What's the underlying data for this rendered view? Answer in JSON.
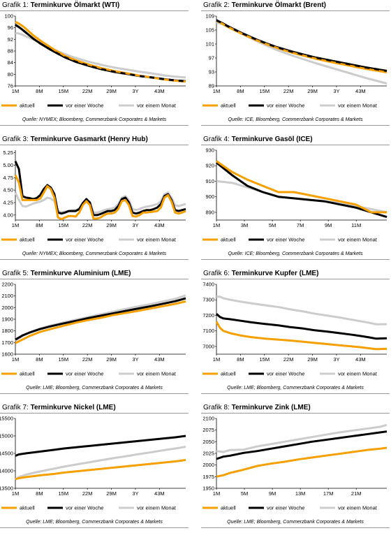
{
  "legend": {
    "aktuell": "aktuell",
    "week": "vor einer Woche",
    "month": "vor einem Monat"
  },
  "colors": {
    "aktuell": "#f5a000",
    "week": "#000000",
    "month": "#cccccc",
    "rule": "#9a9a9a"
  },
  "panels": [
    {
      "label": "Grafik 1:",
      "title": "Terminkurve Ölmarkt (WTI)",
      "source": "Quelle: NYMEX; Bloomberg, Commerzbank Corporates & Markets",
      "chart_data": {
        "type": "line",
        "x": [
          1,
          2,
          3,
          4,
          5,
          6,
          8,
          10,
          12,
          15,
          18,
          22,
          25,
          29,
          33,
          36,
          40,
          43,
          46,
          49
        ],
        "x_ticks": [
          "1M",
          "8M",
          "15M",
          "22M",
          "29M",
          "3Y",
          "43M"
        ],
        "y_ticks": [
          76,
          80,
          84,
          88,
          92,
          96,
          100
        ],
        "ylim": [
          76,
          100
        ],
        "series": [
          {
            "name": "aktuell",
            "values": [
              98.0,
              97.4,
              96.6,
              95.6,
              94.5,
              93.4,
              91.6,
              90.0,
              88.4,
              86.3,
              84.8,
              83.2,
              82.2,
              81.1,
              80.2,
              79.5,
              78.8,
              78.2,
              77.8,
              77.5
            ]
          },
          {
            "name": "vor einer Woche",
            "values": [
              97.0,
              96.2,
              95.3,
              94.3,
              93.3,
              92.3,
              90.6,
              89.1,
              87.7,
              85.8,
              84.3,
              82.8,
              81.8,
              80.8,
              80.0,
              79.4,
              78.8,
              78.3,
              77.9,
              77.6
            ]
          },
          {
            "name": "vor einem Monat",
            "values": [
              94.2,
              94.0,
              93.6,
              93.0,
              92.5,
              92.0,
              90.8,
              89.6,
              88.4,
              86.9,
              85.6,
              84.2,
              83.3,
              82.3,
              81.5,
              80.9,
              80.2,
              79.6,
              79.2,
              78.9
            ]
          }
        ]
      }
    },
    {
      "label": "Grafik 2:",
      "title": "Terminkurve Ölmarkt (Brent)",
      "source": "Quelle: ICE, Bloomberg, Commerzbank Corporates & Markets",
      "chart_data": {
        "type": "line",
        "x": [
          1,
          2,
          3,
          4,
          5,
          6,
          8,
          10,
          12,
          15,
          18,
          22,
          25,
          29,
          33,
          36,
          40,
          43,
          46,
          49
        ],
        "x_ticks": [
          "1M",
          "8M",
          "15M",
          "22M",
          "29M",
          "3Y",
          "43M"
        ],
        "y_ticks": [
          89,
          93,
          97,
          101,
          105,
          109
        ],
        "ylim": [
          89,
          109
        ],
        "series": [
          {
            "name": "aktuell",
            "values": [
              107.6,
              107.2,
              106.6,
              106.0,
              105.5,
              105.0,
              104.0,
              103.1,
              102.2,
              101.0,
              99.9,
              98.6,
              97.8,
              96.8,
              95.9,
              95.3,
              94.5,
              93.9,
              93.4,
              92.9
            ]
          },
          {
            "name": "vor einer Woche",
            "values": [
              107.8,
              107.3,
              106.8,
              106.2,
              105.7,
              105.2,
              104.2,
              103.3,
              102.4,
              101.2,
              100.1,
              98.9,
              98.1,
              97.1,
              96.3,
              95.7,
              94.9,
              94.3,
              93.8,
              93.3
            ]
          },
          {
            "name": "vor einem Monat",
            "values": [
              107.1,
              106.9,
              106.5,
              106.0,
              105.5,
              105.0,
              104.0,
              103.0,
              102.0,
              100.6,
              99.3,
              97.8,
              96.8,
              95.5,
              94.3,
              93.4,
              92.2,
              91.3,
              90.5,
              89.7
            ]
          }
        ]
      }
    },
    {
      "label": "Grafik 3:",
      "title": "Terminkurve Gasmarkt (Henry Hub)",
      "source": "Quelle: NYMEX; Bloomberg, Commerzbank Corporates & Markets",
      "chart_data": {
        "type": "line",
        "x": [
          1,
          2,
          3,
          4,
          5,
          6,
          7,
          8,
          9,
          10,
          11,
          12,
          13,
          14,
          15,
          16,
          17,
          18,
          19,
          20,
          21,
          22,
          23,
          24,
          25,
          26,
          27,
          28,
          29,
          30,
          31,
          32,
          33,
          34,
          35,
          36,
          37,
          38,
          39,
          40,
          41,
          42,
          43,
          44,
          45,
          46,
          47,
          48,
          49
        ],
        "x_ticks": [
          "1M",
          "8M",
          "15M",
          "22M",
          "29M",
          "3Y",
          "43M"
        ],
        "y_ticks": [
          4.0,
          4.25,
          4.5,
          4.75,
          5.0,
          5.25
        ],
        "ylim": [
          3.9,
          5.3
        ],
        "series": [
          {
            "name": "aktuell",
            "values": [
              4.8,
              4.65,
              4.3,
              4.3,
              4.3,
              4.3,
              4.3,
              4.33,
              4.45,
              4.58,
              4.52,
              4.35,
              3.95,
              3.92,
              3.95,
              3.98,
              3.98,
              3.97,
              4.05,
              4.2,
              4.28,
              4.2,
              3.93,
              3.93,
              3.95,
              4.0,
              4.03,
              4.03,
              4.05,
              4.12,
              4.28,
              4.3,
              4.2,
              3.98,
              3.97,
              4.0,
              4.05,
              4.05,
              4.06,
              4.07,
              4.08,
              4.15,
              4.35,
              4.4,
              4.27,
              4.05,
              4.03,
              4.05,
              4.08
            ]
          },
          {
            "name": "vor einer Woche",
            "values": [
              5.08,
              4.92,
              4.38,
              4.35,
              4.34,
              4.32,
              4.34,
              4.4,
              4.52,
              4.6,
              4.55,
              4.42,
              4.05,
              4.03,
              4.05,
              4.08,
              4.08,
              4.08,
              4.12,
              4.24,
              4.32,
              4.25,
              4.0,
              4.0,
              4.02,
              4.05,
              4.08,
              4.08,
              4.1,
              4.18,
              4.32,
              4.35,
              4.25,
              4.05,
              4.03,
              4.05,
              4.08,
              4.1,
              4.1,
              4.12,
              4.15,
              4.22,
              4.38,
              4.42,
              4.3,
              4.1,
              4.08,
              4.1,
              4.12
            ]
          },
          {
            "name": "vor einem Monat",
            "values": [
              4.45,
              4.3,
              4.18,
              4.17,
              4.2,
              4.23,
              4.25,
              4.27,
              4.3,
              4.35,
              4.33,
              4.28,
              4.08,
              4.06,
              4.07,
              4.08,
              4.1,
              4.1,
              4.13,
              4.2,
              4.3,
              4.25,
              4.05,
              4.05,
              4.07,
              4.1,
              4.12,
              4.13,
              4.15,
              4.22,
              4.35,
              4.38,
              4.3,
              4.12,
              4.1,
              4.12,
              4.15,
              4.17,
              4.18,
              4.2,
              4.22,
              4.28,
              4.42,
              4.45,
              4.35,
              4.2,
              4.18,
              4.2,
              4.22
            ]
          }
        ]
      }
    },
    {
      "label": "Grafik 4:",
      "title": "Terminkurve Gasöl (ICE)",
      "source": "Quelle: ICE; Bloomberg, Commerzbank Corporates & Markets",
      "chart_data": {
        "type": "line",
        "x": [
          1,
          2,
          3,
          4,
          5,
          6,
          7,
          8,
          9,
          10,
          11,
          12
        ],
        "x_ticks": [
          "1M",
          "3M",
          "5M",
          "7M",
          "9M",
          "11M"
        ],
        "y_ticks": [
          890,
          900,
          910,
          920,
          930
        ],
        "ylim": [
          885,
          930
        ],
        "series": [
          {
            "name": "aktuell",
            "values": [
              923,
              916,
              911,
              907,
              903,
              903,
              901,
              899,
              897,
              895,
              890,
              890
            ]
          },
          {
            "name": "vor einer Woche",
            "values": [
              922,
              914,
              907,
              903,
              900,
              899,
              898,
              897,
              895,
              893,
              890,
              887
            ]
          },
          {
            "name": "vor einem Monat",
            "values": [
              910,
              909,
              906,
              903,
              900,
              899,
              898,
              897,
              896,
              894,
              892,
              890
            ]
          }
        ]
      }
    },
    {
      "label": "Grafik 5:",
      "title": "Terminkurve Aluminium (LME)",
      "source": "Quelle: LME; Bloomberg, Commerzbank Corporates & Markets",
      "chart_data": {
        "type": "line",
        "x": [
          1,
          3,
          5,
          8,
          11,
          15,
          19,
          22,
          26,
          29,
          33,
          36,
          40,
          43,
          47,
          50
        ],
        "x_ticks": [
          "1M",
          "8M",
          "15M",
          "22M",
          "29M",
          "3Y",
          "43M"
        ],
        "y_ticks": [
          1600,
          1700,
          1800,
          1900,
          2000,
          2100,
          2200
        ],
        "ylim": [
          1600,
          2200
        ],
        "series": [
          {
            "name": "aktuell",
            "values": [
              1695,
              1725,
              1755,
              1790,
              1815,
              1845,
              1875,
              1893,
              1915,
              1935,
              1955,
              1970,
              1993,
              2010,
              2032,
              2053
            ]
          },
          {
            "name": "vor einer Woche",
            "values": [
              1725,
              1760,
              1785,
              1815,
              1838,
              1865,
              1890,
              1910,
              1933,
              1950,
              1973,
              1990,
              2012,
              2030,
              2055,
              2080
            ]
          },
          {
            "name": "vor einem Monat",
            "values": [
              1715,
              1755,
              1785,
              1820,
              1845,
              1873,
              1900,
              1920,
              1945,
              1965,
              1990,
              2008,
              2030,
              2050,
              2075,
              2105
            ]
          }
        ]
      }
    },
    {
      "label": "Grafik 6:",
      "title": "Terminkurve Kupfer (LME)",
      "source": "Quelle: LME; Bloomberg, Commerzbank Corporates & Markets",
      "chart_data": {
        "type": "line",
        "x": [
          1,
          2,
          3,
          5,
          8,
          11,
          15,
          19,
          22,
          26,
          29,
          33,
          36,
          40,
          43,
          45,
          47,
          50
        ],
        "x_ticks": [
          "1M",
          "8M",
          "15M",
          "22M",
          "29M",
          "3Y",
          "43M"
        ],
        "y_ticks": [
          7000,
          7100,
          7200,
          7300,
          7400
        ],
        "ylim": [
          6950,
          7400
        ],
        "series": [
          {
            "name": "aktuell",
            "values": [
              7160,
              7120,
              7100,
              7085,
              7070,
              7060,
              7050,
              7043,
              7038,
              7030,
              7023,
              7015,
              7008,
              7000,
              6993,
              6988,
              6982,
              6985
            ]
          },
          {
            "name": "vor einer Woche",
            "values": [
              7210,
              7190,
              7180,
              7175,
              7165,
              7155,
              7145,
              7135,
              7125,
              7115,
              7105,
              7095,
              7087,
              7075,
              7065,
              7058,
              7050,
              7052
            ]
          },
          {
            "name": "vor einem Monat",
            "values": [
              7320,
              7320,
              7310,
              7300,
              7288,
              7278,
              7265,
              7253,
              7240,
              7225,
              7212,
              7198,
              7188,
              7172,
              7160,
              7152,
              7142,
              7143
            ]
          }
        ]
      }
    },
    {
      "label": "Grafik 7:",
      "title": "Terminkurve Nickel (LME)",
      "source": "Quelle: LME; Bloomberg, Commerzbank Corporates & Markets",
      "chart_data": {
        "type": "line",
        "x": [
          1,
          2,
          4,
          8,
          12,
          15,
          19,
          22,
          26,
          29,
          33,
          36,
          40,
          43,
          47,
          50
        ],
        "x_ticks": [
          "1M",
          "8M",
          "15M",
          "22M",
          "29M",
          "3Y",
          "43M"
        ],
        "y_ticks": [
          13500,
          14000,
          14500,
          15000,
          15500
        ],
        "ylim": [
          13500,
          15500
        ],
        "series": [
          {
            "name": "aktuell",
            "values": [
              13760,
              13790,
              13820,
              13870,
              13910,
              13950,
              13990,
              14020,
              14060,
              14090,
              14130,
              14160,
              14200,
              14230,
              14270,
              14310
            ]
          },
          {
            "name": "vor einer Woche",
            "values": [
              14430,
              14470,
              14500,
              14550,
              14600,
              14640,
              14680,
              14710,
              14750,
              14780,
              14820,
              14850,
              14890,
              14920,
              14960,
              15000
            ]
          },
          {
            "name": "vor einem Monat",
            "values": [
              13750,
              13820,
              13890,
              13980,
              14060,
              14120,
              14190,
              14240,
              14310,
              14360,
              14420,
              14470,
              14530,
              14580,
              14640,
              14690
            ]
          }
        ]
      }
    },
    {
      "label": "Grafik 8:",
      "title": "Terminkurve Zink (LME)",
      "source": "Quelle: LME; Bloomberg, Commerzbank Corporates & Markets",
      "chart_data": {
        "type": "line",
        "x": [
          1,
          2,
          3,
          5,
          7,
          9,
          11,
          13,
          15,
          17,
          19,
          21,
          23,
          25,
          26
        ],
        "x_ticks": [
          "1M",
          "5M",
          "9M",
          "13M",
          "17M",
          "21M"
        ],
        "y_ticks": [
          1950,
          1975,
          2000,
          2025,
          2050,
          2075,
          2100
        ],
        "ylim": [
          1950,
          2100
        ],
        "series": [
          {
            "name": "aktuell",
            "values": [
              1975,
              1978,
              1983,
              1990,
              1998,
              2003,
              2007,
              2012,
              2016,
              2020,
              2024,
              2028,
              2032,
              2035,
              2037
            ]
          },
          {
            "name": "vor einer Woche",
            "values": [
              2013,
              2018,
              2020,
              2026,
              2030,
              2035,
              2040,
              2045,
              2050,
              2054,
              2058,
              2062,
              2066,
              2070,
              2072
            ]
          },
          {
            "name": "vor einem Monat",
            "values": [
              2030,
              2028,
              2032,
              2033,
              2040,
              2045,
              2050,
              2055,
              2060,
              2065,
              2070,
              2074,
              2078,
              2082,
              2086
            ]
          }
        ]
      }
    }
  ]
}
